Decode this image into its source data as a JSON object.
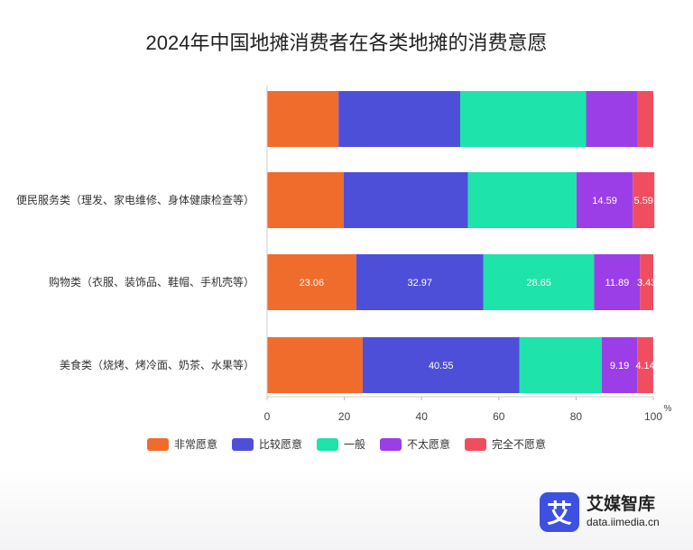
{
  "chart_data": {
    "type": "bar",
    "orientation": "horizontal",
    "stacked": true,
    "title": "2024年中国地摊消费者在各类地摊的消费意愿",
    "categories": [
      "",
      "便民服务类（理发、家电维修、身体健康检查等）",
      "购物类（衣服、装饰品、鞋帽、手机壳等）",
      "美食类（烧烤、烤冷面、奶茶、水果等）"
    ],
    "series": [
      {
        "name": "非常愿意",
        "color": "#ef6c2d",
        "values": [
          18.5,
          19.8,
          23.06,
          24.75
        ],
        "labels": [
          "",
          "",
          "23.06",
          ""
        ]
      },
      {
        "name": "比较愿意",
        "color": "#4e4fd9",
        "values": [
          31.5,
          32.2,
          32.97,
          40.55
        ],
        "labels": [
          "",
          "",
          "32.97",
          "40.55"
        ]
      },
      {
        "name": "一般",
        "color": "#1ee3ab",
        "values": [
          32.6,
          28.1,
          28.65,
          21.35
        ],
        "labels": [
          "",
          "",
          "28.65",
          ""
        ]
      },
      {
        "name": "不太愿意",
        "color": "#9b3ee8",
        "values": [
          13.3,
          14.59,
          11.89,
          9.19
        ],
        "labels": [
          "",
          "14.59",
          "11.89",
          "9.19"
        ]
      },
      {
        "name": "完全不愿意",
        "color": "#f04e5e",
        "values": [
          4.1,
          5.59,
          3.43,
          4.14
        ],
        "labels": [
          "",
          "5.59",
          "3.43",
          "4.14"
        ]
      }
    ],
    "xlim": [
      0,
      100
    ],
    "xticks": [
      0,
      20,
      40,
      60,
      80,
      100
    ],
    "x_unit": "%",
    "grid": false,
    "legend_position": "bottom"
  },
  "brand": {
    "badge": "艾",
    "name": "艾媒智库",
    "url": "data.iimedia.cn"
  }
}
